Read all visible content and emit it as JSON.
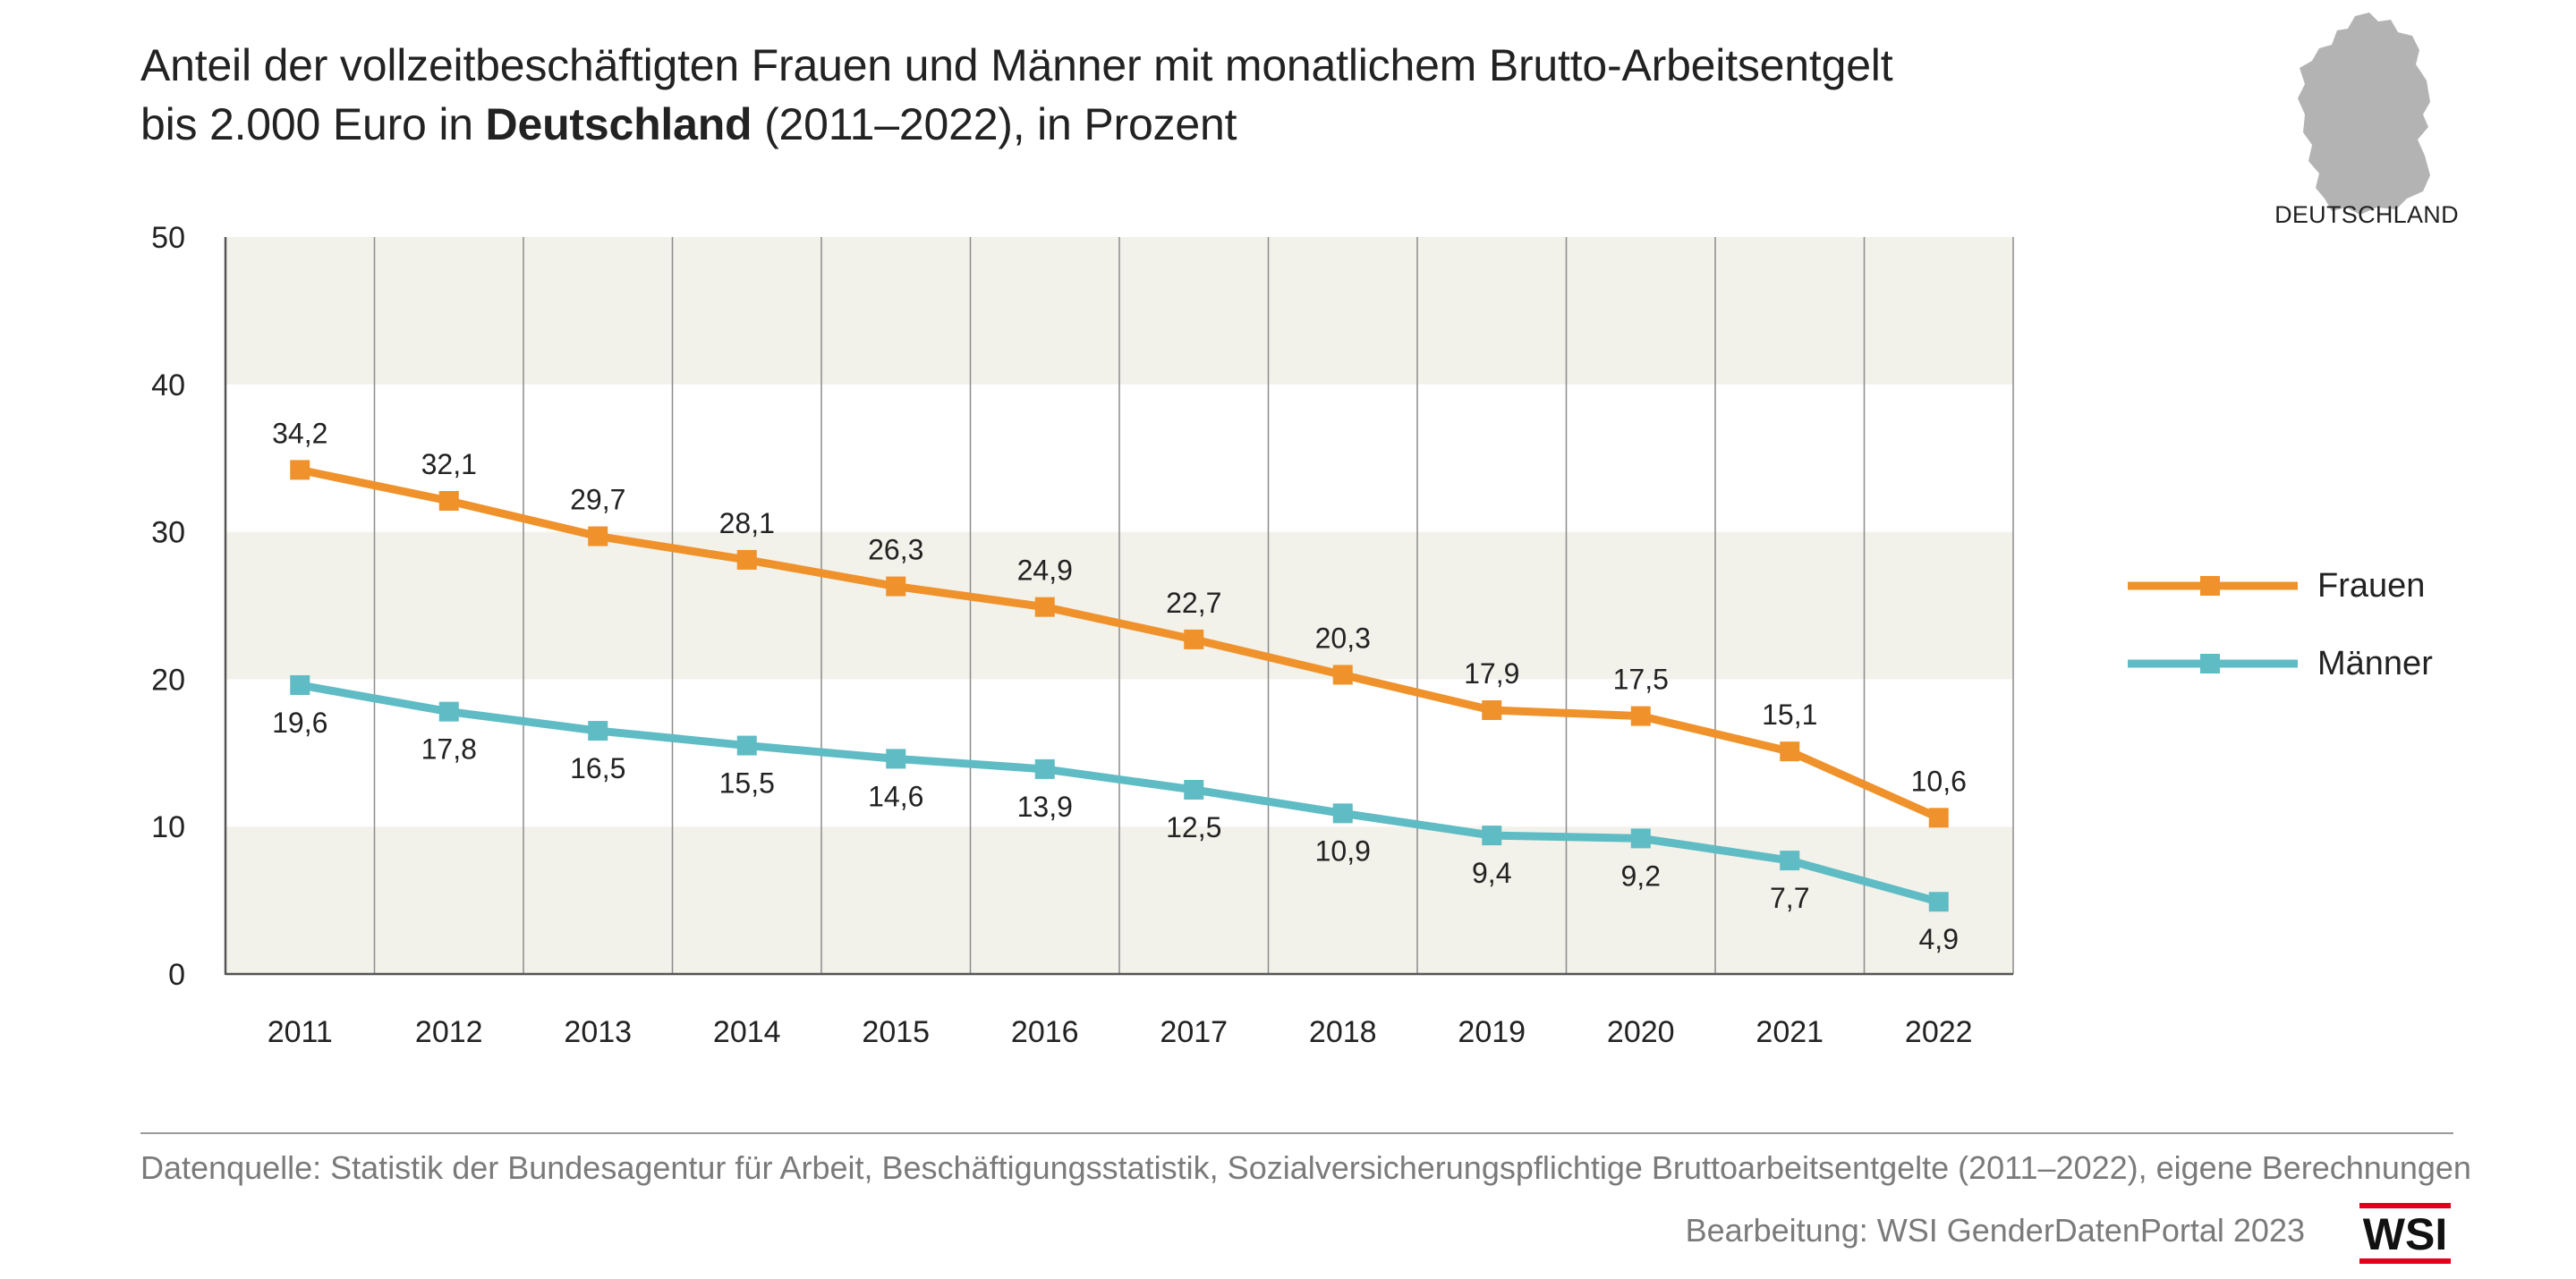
{
  "title": {
    "line1": "Anteil der vollzeitbeschäftigten Frauen und Männer mit monatlichem Brutto-Arbeitsentgelt",
    "line2_prefix": "bis 2.000 Euro in ",
    "line2_bold": "Deutschland",
    "line2_suffix": " (2011–2022), in Prozent"
  },
  "map_label": "DEUTSCHLAND",
  "chart_data": {
    "type": "line",
    "x": [
      "2011",
      "2012",
      "2013",
      "2014",
      "2015",
      "2016",
      "2017",
      "2018",
      "2019",
      "2020",
      "2021",
      "2022"
    ],
    "ylim": [
      0,
      50
    ],
    "yticks": [
      "0",
      "10",
      "20",
      "30",
      "40",
      "50"
    ],
    "series": [
      {
        "name": "Frauen",
        "color": "#f0922b",
        "values": [
          34.2,
          32.1,
          29.7,
          28.1,
          26.3,
          24.9,
          22.7,
          20.3,
          17.9,
          17.5,
          15.1,
          10.6
        ],
        "labels": [
          "34,2",
          "32,1",
          "29,7",
          "28,1",
          "26,3",
          "24,9",
          "22,7",
          "20,3",
          "17,9",
          "17,5",
          "15,1",
          "10,6"
        ],
        "label_position": "above"
      },
      {
        "name": "Männer",
        "color": "#5fbcc4",
        "values": [
          19.6,
          17.8,
          16.5,
          15.5,
          14.6,
          13.9,
          12.5,
          10.9,
          9.4,
          9.2,
          7.7,
          4.9
        ],
        "labels": [
          "19,6",
          "17,8",
          "16,5",
          "15,5",
          "14,6",
          "13,9",
          "12,5",
          "10,9",
          "9,4",
          "9,2",
          "7,7",
          "4,9"
        ],
        "label_position": "below"
      }
    ],
    "legend_position": "right",
    "band_colors": [
      "#f2f1ea",
      "#ffffff"
    ]
  },
  "source": "Datenquelle: Statistik der Bundesagentur für Arbeit, Beschäftigungsstatistik, Sozialversicherungspflichtige Bruttoarbeitsentgelte (2011–2022), eigene Berechnungen",
  "credit": "Bearbeitung: WSI GenderDatenPortal 2023",
  "logo_text": "WSI",
  "colors": {
    "logo_accent": "#e2001a",
    "map_fill": "#b3b3b3"
  }
}
